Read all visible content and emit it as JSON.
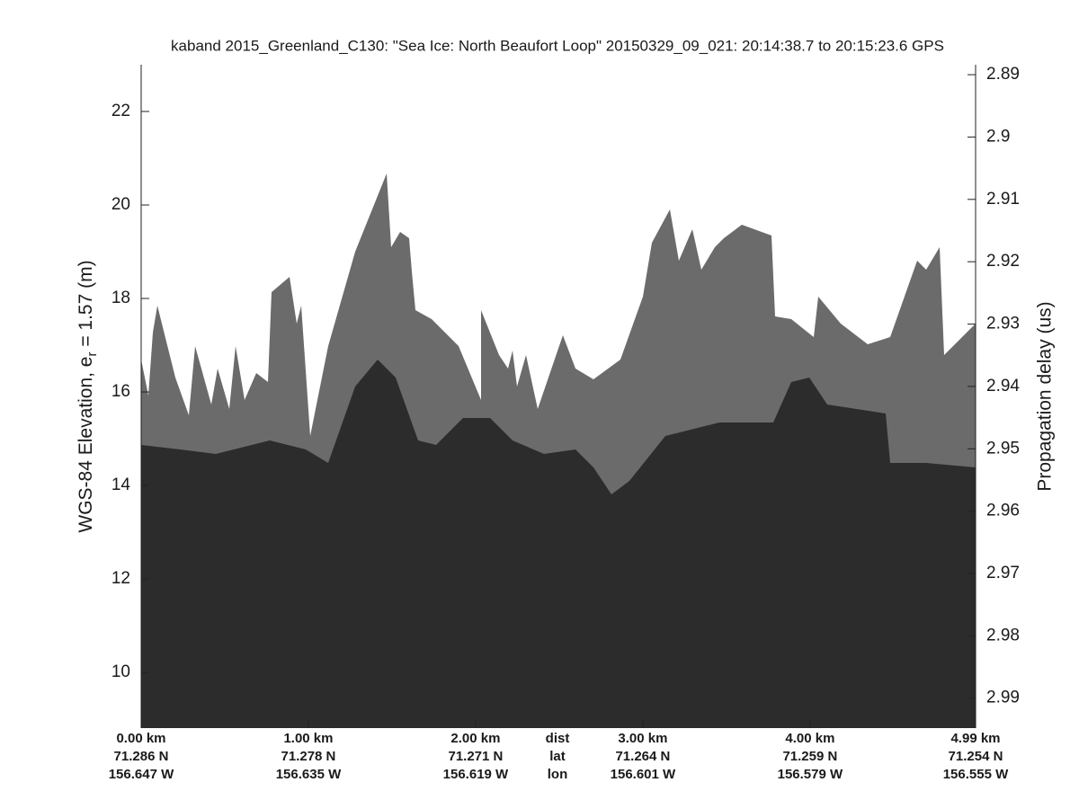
{
  "chart_data": {
    "type": "echogram",
    "title": "kaband 2015_Greenland_C130: \"Sea Ice: North Beaufort Loop\"  20150329_09_021: 20:14:38.7 to 20:15:23.6 GPS",
    "ylabel": {
      "prefix": "WGS-84 Elevation, e",
      "subscript": "r",
      "suffix": " = 1.57 (m)"
    },
    "y2label": "Propagation delay (us)",
    "ylim": [
      8.81,
      23.0
    ],
    "yticks": [
      10,
      12,
      14,
      16,
      18,
      20,
      22
    ],
    "y2lim": [
      2.8884,
      2.9948
    ],
    "y2ticks": [
      2.89,
      2.9,
      2.91,
      2.92,
      2.93,
      2.94,
      2.95,
      2.96,
      2.97,
      2.98,
      2.99
    ],
    "y2_inverted": true,
    "xlim": [
      0,
      4.99
    ],
    "xticks": [
      {
        "value": 0,
        "label": "0.00 km"
      },
      {
        "value": 1,
        "label": "1.00 km"
      },
      {
        "value": 2,
        "label": "2.00 km"
      },
      {
        "value": 3,
        "label": "3.00 km"
      },
      {
        "value": 4,
        "label": "4.00 km"
      },
      {
        "value": 4.99,
        "label": "4.99 km"
      }
    ],
    "lat_labels": [
      "71.286 N",
      "71.278 N",
      "71.271 N",
      "71.264 N",
      "71.259 N",
      "71.254 N"
    ],
    "lon_labels": [
      "156.647 W",
      "156.635 W",
      "156.619 W",
      "156.601 W",
      "156.579 W",
      "156.555 W"
    ],
    "row_labels": [
      "dist",
      "lat",
      "lon"
    ]
  }
}
